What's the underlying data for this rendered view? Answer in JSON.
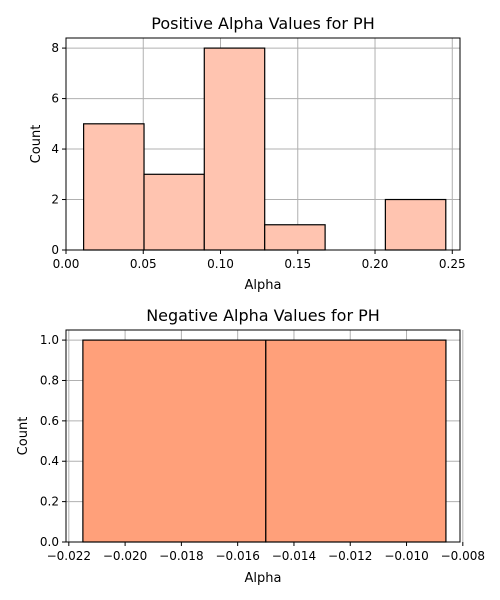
{
  "chart_data": [
    {
      "type": "bar",
      "subtype": "histogram",
      "title": "Positive Alpha Values for PH",
      "xlabel": "Alpha",
      "ylabel": "Count",
      "xlim": [
        0.0,
        0.255
      ],
      "ylim": [
        0,
        8.4
      ],
      "xticks": [
        0.0,
        0.05,
        0.1,
        0.15,
        0.2,
        0.25
      ],
      "xtick_labels": [
        "0.00",
        "0.05",
        "0.10",
        "0.15",
        "0.20",
        "0.25"
      ],
      "yticks": [
        0,
        2,
        4,
        6,
        8
      ],
      "ytick_labels": [
        "0",
        "2",
        "4",
        "6",
        "8"
      ],
      "bin_edges": [
        0.0114,
        0.0505,
        0.0895,
        0.1286,
        0.1677,
        0.2067,
        0.2458
      ],
      "values": [
        5,
        3,
        8,
        1,
        0,
        2
      ],
      "grid": true,
      "color": "#ffc4b0"
    },
    {
      "type": "bar",
      "subtype": "histogram",
      "title": "Negative Alpha Values for PH",
      "xlabel": "Alpha",
      "ylabel": "Count",
      "xlim": [
        -0.0221,
        -0.0081
      ],
      "ylim": [
        0,
        1.05
      ],
      "xticks": [
        -0.022,
        -0.02,
        -0.018,
        -0.016,
        -0.014,
        -0.012,
        -0.01,
        -0.008
      ],
      "xtick_labels": [
        "−0.022",
        "−0.020",
        "−0.018",
        "−0.016",
        "−0.014",
        "−0.012",
        "−0.010",
        "−0.008"
      ],
      "yticks": [
        0,
        0.2,
        0.4,
        0.6,
        0.8,
        1.0
      ],
      "ytick_labels": [
        "0.0",
        "0.2",
        "0.4",
        "0.6",
        "0.8",
        "1.0"
      ],
      "bin_edges": [
        -0.0215,
        -0.015,
        -0.0086
      ],
      "values": [
        1,
        1
      ],
      "grid": true,
      "color": "#ffa07a"
    }
  ]
}
